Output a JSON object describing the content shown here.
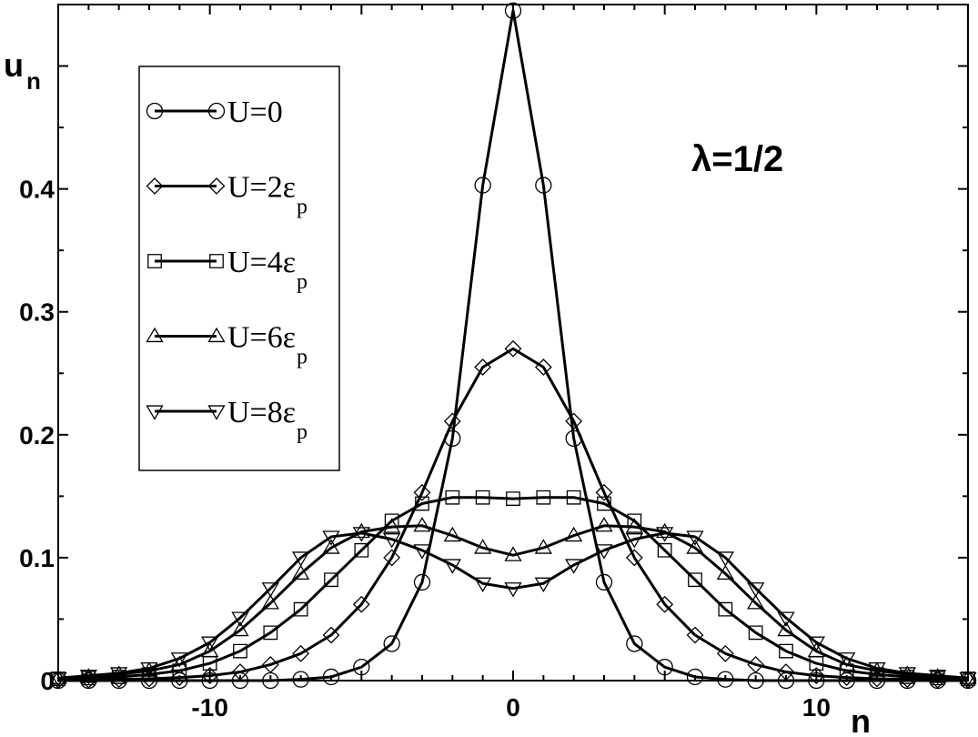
{
  "chart_data": {
    "type": "line",
    "title": "",
    "xlabel": "n",
    "ylabel": "u",
    "ylabel_sub": "n",
    "annotation": "λ=1/2",
    "xlim": [
      -15,
      15
    ],
    "ylim": [
      0,
      0.55
    ],
    "x_ticks": [
      -10,
      0,
      10
    ],
    "x_tick_labels": [
      "-10",
      "0",
      "10"
    ],
    "y_ticks": [
      0,
      0.1,
      0.2,
      0.3,
      0.4
    ],
    "y_tick_labels": [
      "0",
      "0.1",
      "0.2",
      "0.3",
      "0.4"
    ],
    "legend_position": "top-left",
    "grid": false,
    "x": [
      -15,
      -14,
      -13,
      -12,
      -11,
      -10,
      -9,
      -8,
      -7,
      -6,
      -5,
      -4,
      -3,
      -2,
      -1,
      0,
      1,
      2,
      3,
      4,
      5,
      6,
      7,
      8,
      9,
      10,
      11,
      12,
      13,
      14,
      15
    ],
    "series": [
      {
        "name": "U=0",
        "label_main": "U=0",
        "label_sub": "",
        "marker": "circle",
        "values": [
          0,
          0,
          0,
          0,
          0,
          0,
          0,
          0,
          0.001,
          0.003,
          0.011,
          0.03,
          0.08,
          0.197,
          0.403,
          0.545,
          0.403,
          0.197,
          0.08,
          0.03,
          0.011,
          0.003,
          0.001,
          0,
          0,
          0,
          0,
          0,
          0,
          0,
          0
        ]
      },
      {
        "name": "U=2εp",
        "label_main": "U=2ε",
        "label_sub": "p",
        "marker": "diamond",
        "values": [
          0.0003,
          0.0005,
          0.001,
          0.0015,
          0.0025,
          0.004,
          0.007,
          0.013,
          0.022,
          0.037,
          0.062,
          0.1,
          0.153,
          0.211,
          0.255,
          0.27,
          0.255,
          0.211,
          0.153,
          0.1,
          0.062,
          0.037,
          0.022,
          0.013,
          0.007,
          0.004,
          0.0025,
          0.0015,
          0.001,
          0.0005,
          0.0003
        ]
      },
      {
        "name": "U=4εp",
        "label_main": "U=4ε",
        "label_sub": "p",
        "marker": "square",
        "values": [
          0.0015,
          0.002,
          0.003,
          0.005,
          0.008,
          0.014,
          0.024,
          0.039,
          0.058,
          0.082,
          0.106,
          0.13,
          0.144,
          0.149,
          0.149,
          0.148,
          0.149,
          0.149,
          0.144,
          0.13,
          0.106,
          0.082,
          0.058,
          0.039,
          0.024,
          0.014,
          0.008,
          0.005,
          0.003,
          0.002,
          0.0015
        ]
      },
      {
        "name": "U=6εp",
        "label_main": "U=6ε",
        "label_sub": "p",
        "marker": "triangle-up",
        "values": [
          0.002,
          0.003,
          0.005,
          0.008,
          0.013,
          0.024,
          0.041,
          0.063,
          0.087,
          0.108,
          0.121,
          0.125,
          0.126,
          0.118,
          0.108,
          0.102,
          0.108,
          0.118,
          0.126,
          0.125,
          0.121,
          0.108,
          0.087,
          0.063,
          0.041,
          0.024,
          0.013,
          0.008,
          0.005,
          0.003,
          0.002
        ]
      },
      {
        "name": "U=8εp",
        "label_main": "U=8ε",
        "label_sub": "p",
        "marker": "triangle-down",
        "values": [
          0.002,
          0.004,
          0.006,
          0.01,
          0.018,
          0.031,
          0.051,
          0.075,
          0.1,
          0.117,
          0.12,
          0.115,
          0.106,
          0.094,
          0.079,
          0.075,
          0.079,
          0.094,
          0.106,
          0.115,
          0.12,
          0.117,
          0.1,
          0.075,
          0.051,
          0.031,
          0.018,
          0.01,
          0.006,
          0.004,
          0.002
        ]
      }
    ]
  }
}
